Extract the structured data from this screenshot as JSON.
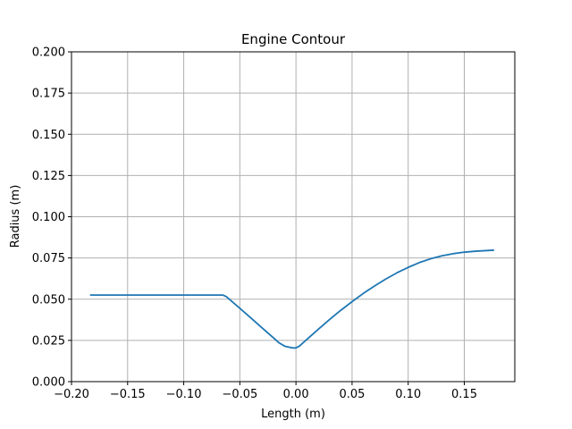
{
  "chart_data": {
    "type": "line",
    "title": "Engine Contour",
    "xlabel": "Length (m)",
    "ylabel": "Radius (m)",
    "xlim": [
      -0.2,
      0.195
    ],
    "ylim": [
      0.0,
      0.2
    ],
    "xticks": [
      -0.2,
      -0.15,
      -0.1,
      -0.05,
      0.0,
      0.05,
      0.1,
      0.15
    ],
    "xtick_labels": [
      "−0.20",
      "−0.15",
      "−0.10",
      "−0.05",
      "0.00",
      "0.05",
      "0.10",
      "0.15"
    ],
    "yticks": [
      0.0,
      0.025,
      0.05,
      0.075,
      0.1,
      0.125,
      0.15,
      0.175,
      0.2
    ],
    "ytick_labels": [
      "0.000",
      "0.025",
      "0.050",
      "0.075",
      "0.100",
      "0.125",
      "0.150",
      "0.175",
      "0.200"
    ],
    "grid": true,
    "series": [
      {
        "color": "#1f77b4",
        "x": [
          -0.183,
          -0.12,
          -0.065,
          -0.062,
          -0.05,
          -0.04,
          -0.03,
          -0.02,
          -0.015,
          -0.01,
          -0.005,
          -0.002,
          0.0,
          0.003,
          0.01,
          0.02,
          0.03,
          0.04,
          0.05,
          0.06,
          0.07,
          0.08,
          0.09,
          0.1,
          0.11,
          0.12,
          0.13,
          0.14,
          0.15,
          0.16,
          0.176
        ],
        "y": [
          0.0525,
          0.0525,
          0.0525,
          0.0515,
          0.0445,
          0.0385,
          0.0325,
          0.0265,
          0.0235,
          0.0215,
          0.0207,
          0.0204,
          0.0205,
          0.0215,
          0.0258,
          0.0318,
          0.0377,
          0.0433,
          0.0485,
          0.0535,
          0.058,
          0.0622,
          0.066,
          0.0693,
          0.0722,
          0.0745,
          0.0763,
          0.0776,
          0.0785,
          0.0791,
          0.0797
        ]
      }
    ]
  }
}
